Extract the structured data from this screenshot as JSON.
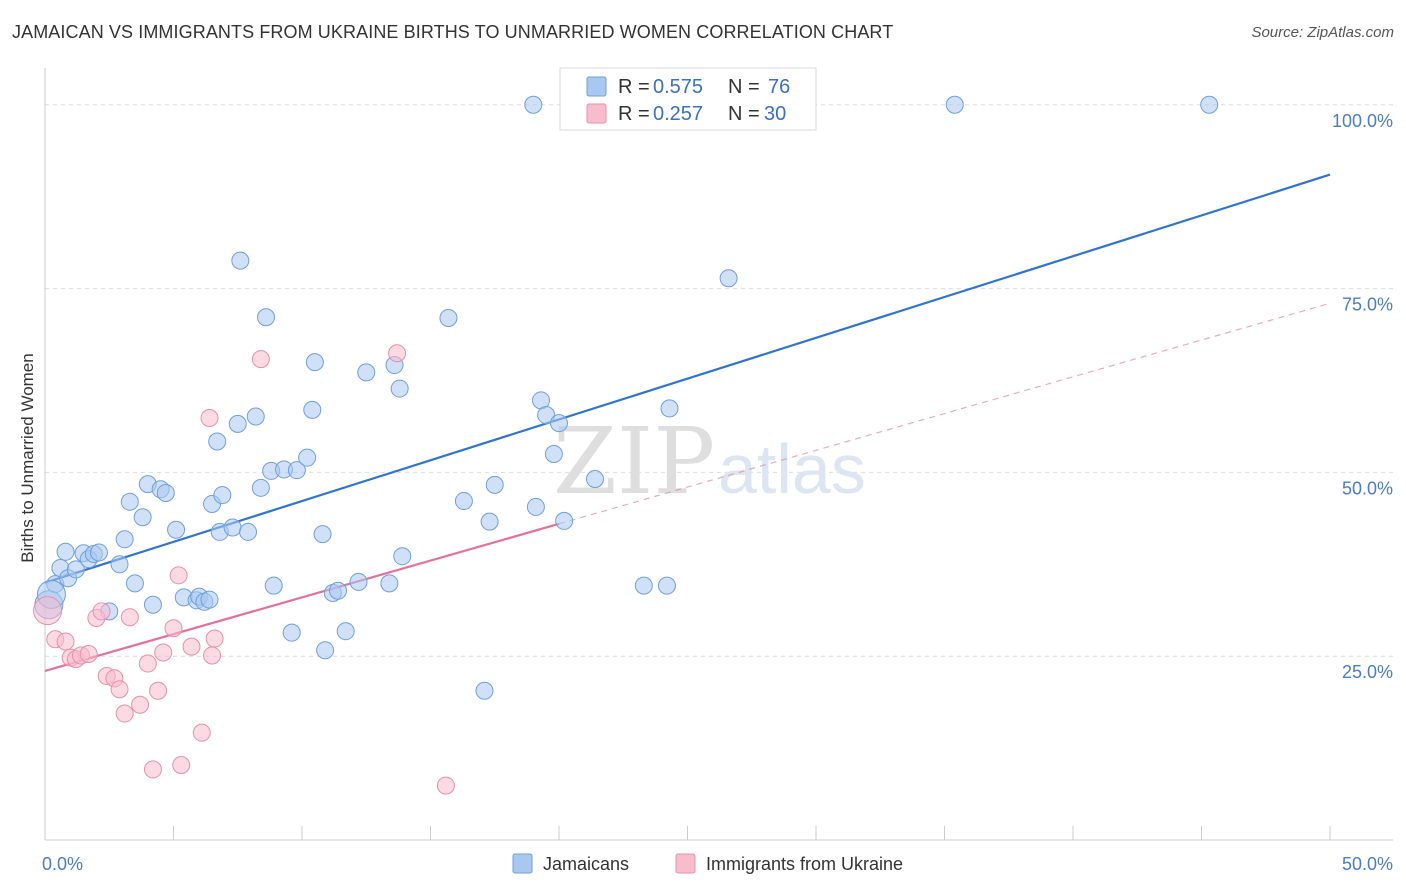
{
  "chart_data": {
    "type": "scatter",
    "title": "JAMAICAN VS IMMIGRANTS FROM UKRAINE BIRTHS TO UNMARRIED WOMEN CORRELATION CHART",
    "source": "Source: ZipAtlas.com",
    "xlabel": "",
    "ylabel": "Births to Unmarried Women",
    "xlim": [
      0,
      50
    ],
    "ylim": [
      0,
      105
    ],
    "x_tick_labels": [
      "0.0%",
      "50.0%"
    ],
    "y_ticks": [
      25,
      50,
      75,
      100
    ],
    "y_tick_labels": [
      "25.0%",
      "50.0%",
      "75.0%",
      "100.0%"
    ],
    "watermark": [
      "ZIP",
      "atlas"
    ],
    "legend": {
      "r_label": "R =",
      "n_label": "N =",
      "entries": [
        {
          "r": "0.575",
          "n": "76",
          "color": "#a9c8f0"
        },
        {
          "r": "0.257",
          "n": "30",
          "color": "#f7bccd"
        }
      ]
    },
    "series": [
      {
        "name": "Jamaicans",
        "color": "#a9c8f0",
        "stroke": "#6f9fdc",
        "trend_color": "#2f74d0",
        "trend": {
          "x": [
            0,
            50
          ],
          "y": [
            35.0,
            90.5
          ]
        },
        "points": [
          [
            0.4,
            34.8
          ],
          [
            0.6,
            37.0
          ],
          [
            0.8,
            39.2
          ],
          [
            0.9,
            35.6
          ],
          [
            1.2,
            36.8
          ],
          [
            1.5,
            39.0
          ],
          [
            1.7,
            38.2
          ],
          [
            1.9,
            38.9
          ],
          [
            2.1,
            39.1
          ],
          [
            2.5,
            31.1
          ],
          [
            2.9,
            37.5
          ],
          [
            3.1,
            40.9
          ],
          [
            3.3,
            46.0
          ],
          [
            3.5,
            34.9
          ],
          [
            3.8,
            43.9
          ],
          [
            4.0,
            48.4
          ],
          [
            4.2,
            32.0
          ],
          [
            4.5,
            47.7
          ],
          [
            4.7,
            47.2
          ],
          [
            5.1,
            42.2
          ],
          [
            5.4,
            33.0
          ],
          [
            5.9,
            32.6
          ],
          [
            6.0,
            33.1
          ],
          [
            6.2,
            32.4
          ],
          [
            6.4,
            32.7
          ],
          [
            6.5,
            45.7
          ],
          [
            6.7,
            54.2
          ],
          [
            6.8,
            41.9
          ],
          [
            6.9,
            46.9
          ],
          [
            7.3,
            42.5
          ],
          [
            7.5,
            56.6
          ],
          [
            7.6,
            78.8
          ],
          [
            7.9,
            41.9
          ],
          [
            8.2,
            57.6
          ],
          [
            8.4,
            47.9
          ],
          [
            8.6,
            71.1
          ],
          [
            8.8,
            50.2
          ],
          [
            8.9,
            34.6
          ],
          [
            9.3,
            50.4
          ],
          [
            9.6,
            28.2
          ],
          [
            9.8,
            50.3
          ],
          [
            10.2,
            52.0
          ],
          [
            10.4,
            58.5
          ],
          [
            10.5,
            65.0
          ],
          [
            10.8,
            41.6
          ],
          [
            10.9,
            25.8
          ],
          [
            11.2,
            33.6
          ],
          [
            11.4,
            33.9
          ],
          [
            11.7,
            28.4
          ],
          [
            12.2,
            35.1
          ],
          [
            12.5,
            63.6
          ],
          [
            13.4,
            34.9
          ],
          [
            13.6,
            64.6
          ],
          [
            13.8,
            61.4
          ],
          [
            13.9,
            38.6
          ],
          [
            15.7,
            71.0
          ],
          [
            16.3,
            46.1
          ],
          [
            17.1,
            20.3
          ],
          [
            17.3,
            43.3
          ],
          [
            17.5,
            48.3
          ],
          [
            19.1,
            45.3
          ],
          [
            19.0,
            100.0
          ],
          [
            19.3,
            59.8
          ],
          [
            19.5,
            57.8
          ],
          [
            19.8,
            52.5
          ],
          [
            20.0,
            56.7
          ],
          [
            20.2,
            43.4
          ],
          [
            21.4,
            49.1
          ],
          [
            23.3,
            34.6
          ],
          [
            24.2,
            34.6
          ],
          [
            24.3,
            58.7
          ],
          [
            26.6,
            76.4
          ],
          [
            35.4,
            100.0
          ],
          [
            45.3,
            100.0
          ],
          [
            0.15,
            32.0
          ],
          [
            0.25,
            33.4
          ]
        ]
      },
      {
        "name": "Immigrants from Ukraine",
        "color": "#f7bccd",
        "stroke": "#e890ab",
        "trend_color": "#e4709a",
        "trend": {
          "x": [
            0,
            20
          ],
          "y": [
            23.0,
            43.0
          ]
        },
        "trend_extension": {
          "x": [
            20,
            50
          ],
          "y": [
            43.0,
            73.0
          ]
        },
        "points": [
          [
            0.1,
            31.2
          ],
          [
            0.4,
            27.3
          ],
          [
            0.8,
            27.0
          ],
          [
            1.0,
            24.8
          ],
          [
            1.2,
            24.6
          ],
          [
            1.4,
            25.1
          ],
          [
            1.7,
            25.3
          ],
          [
            2.0,
            30.2
          ],
          [
            2.2,
            31.1
          ],
          [
            2.4,
            22.3
          ],
          [
            2.7,
            22.0
          ],
          [
            2.9,
            20.5
          ],
          [
            3.1,
            17.2
          ],
          [
            3.3,
            30.3
          ],
          [
            3.7,
            18.4
          ],
          [
            4.0,
            24.0
          ],
          [
            4.2,
            9.6
          ],
          [
            4.4,
            20.3
          ],
          [
            4.6,
            25.5
          ],
          [
            5.0,
            28.8
          ],
          [
            5.2,
            36.0
          ],
          [
            5.3,
            10.2
          ],
          [
            5.7,
            26.3
          ],
          [
            6.1,
            14.6
          ],
          [
            6.4,
            57.4
          ],
          [
            6.5,
            25.1
          ],
          [
            6.6,
            27.4
          ],
          [
            8.4,
            65.4
          ],
          [
            13.7,
            66.2
          ],
          [
            15.6,
            7.4
          ]
        ]
      }
    ]
  },
  "bottom_legend": [
    "Jamaicans",
    "Immigrants from Ukraine"
  ]
}
